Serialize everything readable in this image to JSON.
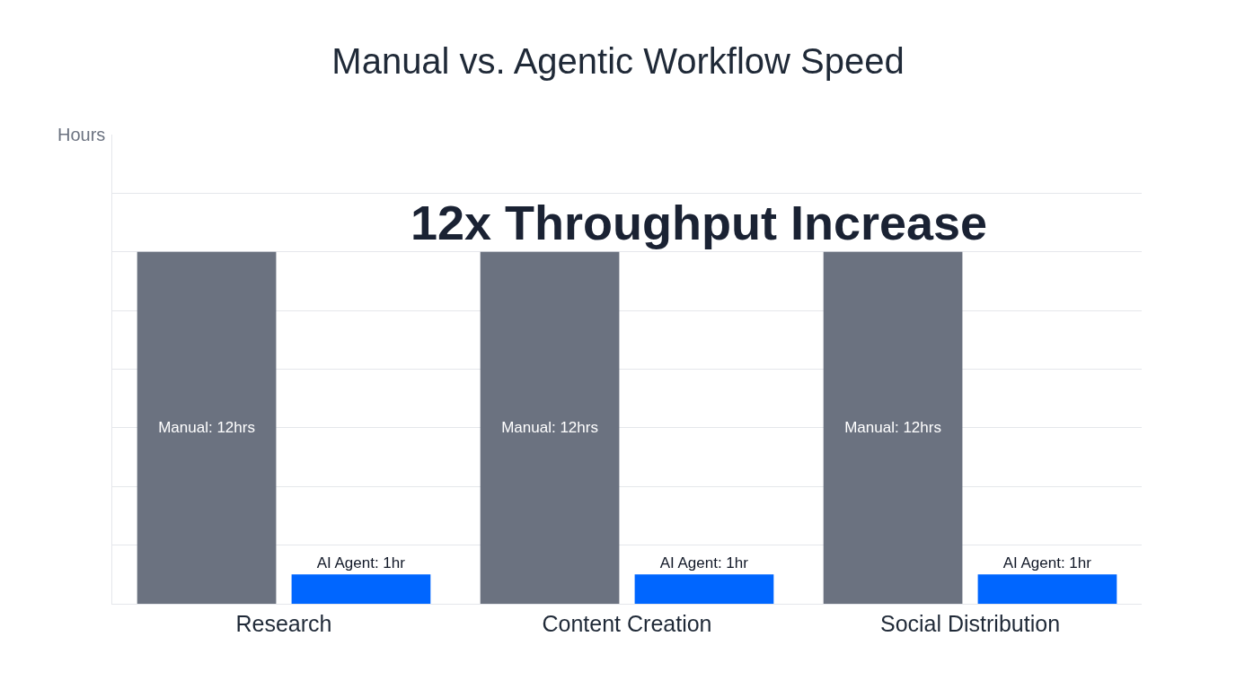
{
  "chart_data": {
    "type": "bar",
    "title": "Manual vs. Agentic Workflow Speed",
    "ylabel": "Hours",
    "grid": "y",
    "ylim": [
      0,
      16
    ],
    "yticks": [
      {
        "value": 0,
        "label": null
      },
      {
        "value": 2,
        "label": null
      },
      {
        "value": 4,
        "label": null
      },
      {
        "value": 6,
        "label": null
      },
      {
        "value": 8,
        "label": null
      },
      {
        "value": 10,
        "label": null
      },
      {
        "value": 12,
        "label": null
      },
      {
        "value": 14,
        "label": null
      }
    ],
    "categories": [
      "Research",
      "Content Creation",
      "Social Distribution"
    ],
    "series": [
      {
        "color": "#6b7280",
        "values": [
          12,
          12,
          12
        ],
        "value_labels": [
          "Manual: 12hrs",
          "Manual: 12hrs",
          "Manual: 12hrs"
        ]
      },
      {
        "color": "#0066ff",
        "values": [
          1,
          1,
          1
        ],
        "value_labels": [
          "AI Agent: 1hr",
          "AI Agent: 1hr",
          "AI Agent: 1hr"
        ]
      }
    ],
    "annotations": [
      "12x Throughput Increase"
    ]
  }
}
